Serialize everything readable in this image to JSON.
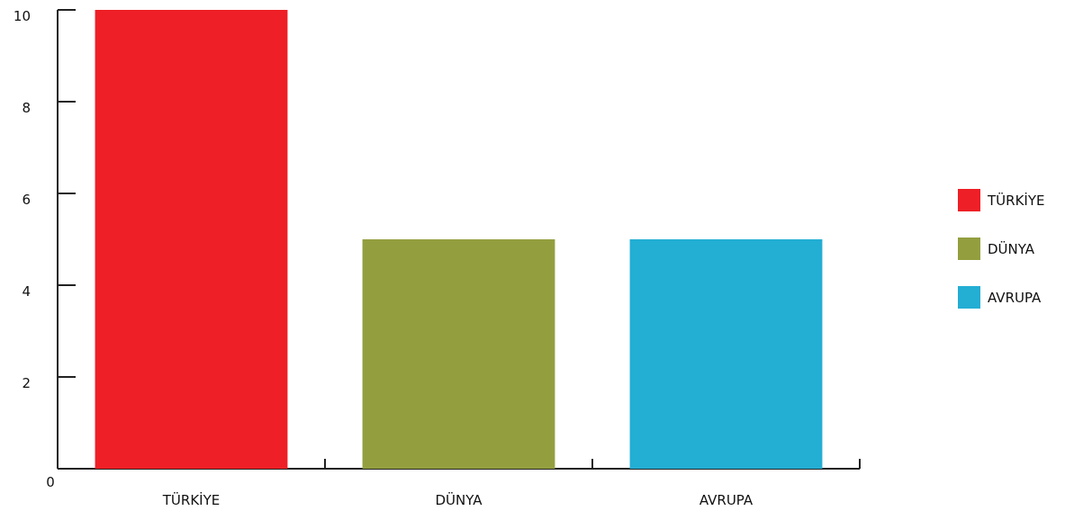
{
  "chart_data": {
    "type": "bar",
    "categories": [
      "TÜRKİYE",
      "DÜNYA",
      "AVRUPA"
    ],
    "values": [
      10,
      5,
      5
    ],
    "colors": [
      "#ee1f26",
      "#939f3f",
      "#23aed3"
    ],
    "ylim": [
      0,
      10
    ],
    "yticks": [
      "0",
      "2",
      "4",
      "6",
      "8",
      "10"
    ],
    "xlabel": "",
    "ylabel": "",
    "grid": false,
    "legend": {
      "placement": "right",
      "items": [
        {
          "label": "TÜRKİYE",
          "color": "#ee1f26"
        },
        {
          "label": "DÜNYA",
          "color": "#939f3f"
        },
        {
          "label": "AVRUPA",
          "color": "#23aed3"
        }
      ]
    }
  }
}
